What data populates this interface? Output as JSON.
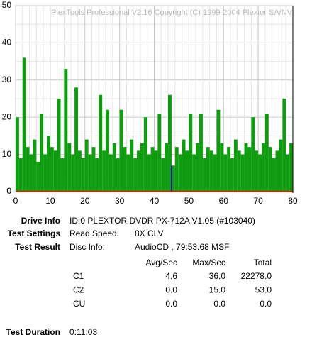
{
  "chart_data": {
    "type": "bar",
    "title": "PlexTools Professional V2.16 Copyright (C) 1999-2004 Plextor SA/NV",
    "series": [
      {
        "color": "#109c10",
        "x": [
          0.5,
          1.5,
          2.5,
          3.5,
          4.5,
          5.5,
          6.5,
          7.5,
          8.5,
          9.5,
          10.5,
          11.5,
          12.5,
          13.5,
          14.5,
          15.5,
          16.5,
          17.5,
          18.5,
          19.5,
          20.5,
          21.5,
          22.5,
          23.5,
          24.5,
          25.5,
          26.5,
          27.5,
          28.5,
          29.5,
          30.5,
          31.5,
          32.5,
          33.5,
          34.5,
          35.5,
          36.5,
          37.5,
          38.5,
          39.5,
          40.5,
          41.5,
          42.5,
          43.5,
          44.5,
          45.5,
          46.5,
          47.5,
          48.5,
          49.5,
          50.5,
          51.5,
          52.5,
          53.5,
          54.5,
          55.5,
          56.5,
          57.5,
          58.5,
          59.5,
          60.5,
          61.5,
          62.5,
          63.5,
          64.5,
          65.5,
          66.5,
          67.5,
          68.5,
          69.5,
          70.5,
          71.5,
          72.5,
          73.5,
          74.5,
          75.5,
          76.5,
          77.5,
          78.5,
          79.5
        ],
        "values": [
          20,
          9,
          36,
          12,
          10,
          14,
          8,
          21,
          10,
          15,
          12,
          11,
          25,
          9,
          33,
          13,
          10,
          28,
          11,
          9,
          14,
          10,
          12,
          9,
          26,
          11,
          22,
          10,
          13,
          9,
          22,
          12,
          10,
          14,
          9,
          11,
          13,
          20,
          10,
          12,
          11,
          21,
          9,
          13,
          26,
          7,
          12,
          10,
          14,
          11,
          21,
          10,
          13,
          21,
          9,
          12,
          11,
          10,
          22,
          13,
          10,
          12,
          9,
          14,
          11,
          10,
          13,
          12,
          20,
          11,
          10,
          13,
          21,
          12,
          9,
          11,
          14,
          25,
          10,
          13
        ]
      },
      {
        "color": "#0000cc",
        "x": [
          45
        ],
        "values": [
          7
        ]
      }
    ],
    "xlim": [
      0,
      80
    ],
    "xticks": [
      0,
      10,
      20,
      30,
      40,
      50,
      60,
      70,
      80
    ],
    "ylim": [
      0,
      50
    ],
    "yticks": [
      0,
      10,
      20,
      30,
      40,
      50
    ],
    "grid": true
  },
  "report": {
    "drive_info": {
      "label": "Drive Info",
      "value": "ID:0 PLEXTOR DVDR PX-712A V1.05 (#103040)"
    },
    "test_settings": {
      "label": "Test Settings",
      "key": "Read Speed:",
      "value": "8X CLV"
    },
    "test_result": {
      "label": "Test Result",
      "key": "Disc Info:",
      "value": "AudioCD , 79:53.68 MSF"
    },
    "table": {
      "header": [
        "Avg/Sec",
        "Max/Sec",
        "Total"
      ],
      "rows": [
        [
          "C1",
          "4.6",
          "36.0",
          "22278.0"
        ],
        [
          "C2",
          "0.0",
          "15.0",
          "53.0"
        ],
        [
          "CU",
          "0.0",
          "0.0",
          "0.0"
        ]
      ]
    },
    "test_duration": {
      "label": "Test Duration",
      "value": "0:11:03"
    }
  }
}
